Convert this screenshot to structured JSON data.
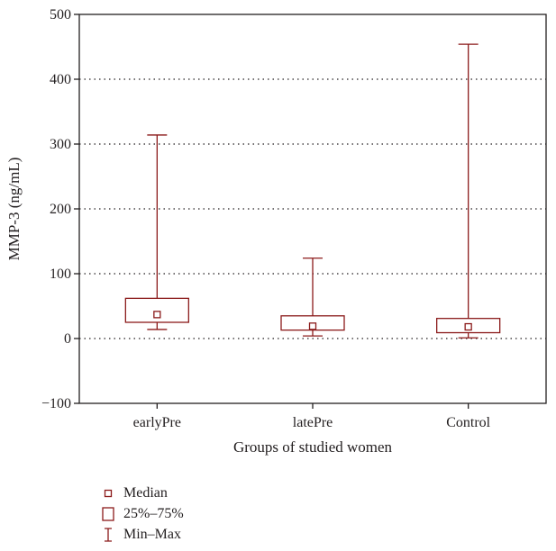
{
  "chart_data": {
    "type": "box",
    "xlabel": "Groups of studied women",
    "ylabel": "MMP-3 (ng/mL)",
    "ylim": [
      -100,
      500
    ],
    "yticks": [
      -100,
      0,
      100,
      200,
      300,
      400,
      500
    ],
    "ytick_labels": [
      "−100",
      "0",
      "100",
      "200",
      "300",
      "400",
      "500"
    ],
    "grid": "horizontal dotted",
    "categories": [
      "earlyPre",
      "latePre",
      "Control"
    ],
    "groups": [
      {
        "name": "earlyPre",
        "median": 37,
        "q1": 25,
        "q3": 62,
        "min": 14,
        "max": 314
      },
      {
        "name": "latePre",
        "median": 19,
        "q1": 13,
        "q3": 35,
        "min": 4,
        "max": 124
      },
      {
        "name": "Control",
        "median": 18,
        "q1": 9,
        "q3": 31,
        "min": 1,
        "max": 454
      }
    ],
    "legend": [
      {
        "symbol": "median",
        "label": "Median"
      },
      {
        "symbol": "box",
        "label": "25%–75%"
      },
      {
        "symbol": "whisker",
        "label": "Min–Max"
      }
    ],
    "colors": {
      "series": "#8b1a1a",
      "axis": "#231f20",
      "grid": "#231f20"
    }
  }
}
